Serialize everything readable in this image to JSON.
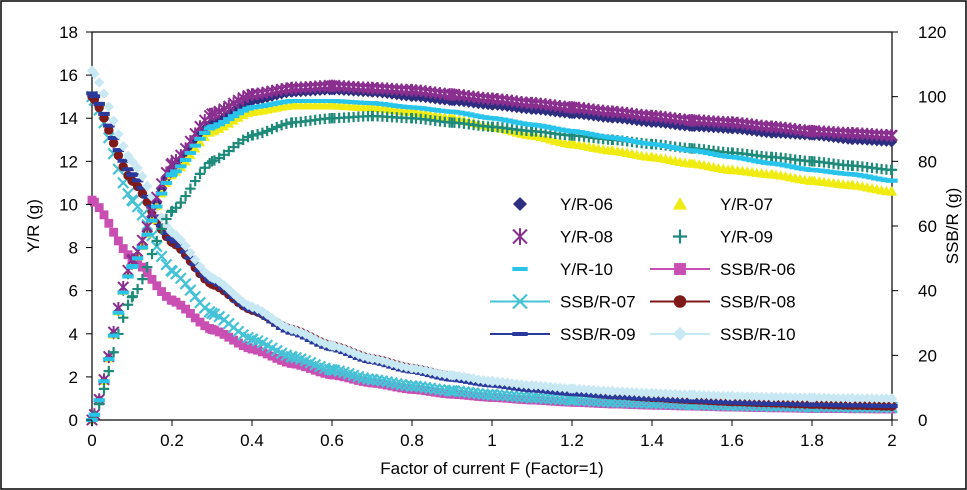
{
  "chart_data": {
    "type": "scatter",
    "xlabel": "Factor of current F (Factor=1)",
    "ylabel_left": "Y/R (g)",
    "ylabel_right": "SSB/R (g)",
    "xlim": [
      0,
      2
    ],
    "ylim_left": [
      0,
      18
    ],
    "ylim_right": [
      0,
      120
    ],
    "x_ticks": [
      "0",
      "0.2",
      "0.4",
      "0.6",
      "0.8",
      "1",
      "1.2",
      "1.4",
      "1.6",
      "1.8",
      "2"
    ],
    "y_left_ticks": [
      "0",
      "2",
      "4",
      "6",
      "8",
      "10",
      "12",
      "14",
      "16",
      "18"
    ],
    "y_right_ticks": [
      "0",
      "20",
      "40",
      "60",
      "80",
      "100",
      "120"
    ],
    "grid": false,
    "legend_position": "center-right",
    "x": [
      0,
      0.1,
      0.2,
      0.3,
      0.4,
      0.5,
      0.6,
      0.7,
      0.8,
      0.9,
      1.0,
      1.1,
      1.2,
      1.3,
      1.4,
      1.5,
      1.6,
      1.7,
      1.8,
      1.9,
      2.0
    ],
    "series": [
      {
        "name": "Y/R-06",
        "axis": "left",
        "marker": "diamond",
        "color": "#2e2e80",
        "values": [
          0,
          7.2,
          11.6,
          13.8,
          14.8,
          15.2,
          15.3,
          15.2,
          15.0,
          14.8,
          14.6,
          14.4,
          14.2,
          14.0,
          13.8,
          13.6,
          13.5,
          13.3,
          13.2,
          13.0,
          12.9
        ]
      },
      {
        "name": "Y/R-07",
        "axis": "left",
        "marker": "triangle",
        "color": "#f0ec12",
        "values": [
          0,
          7.2,
          11.4,
          13.4,
          14.3,
          14.6,
          14.6,
          14.5,
          14.3,
          14.0,
          13.6,
          13.2,
          12.8,
          12.5,
          12.2,
          11.9,
          11.6,
          11.4,
          11.1,
          10.9,
          10.6
        ]
      },
      {
        "name": "Y/R-08",
        "axis": "left",
        "marker": "star",
        "color": "#8a2f8f",
        "values": [
          0,
          7.4,
          11.9,
          14.2,
          15.1,
          15.4,
          15.5,
          15.4,
          15.3,
          15.1,
          14.9,
          14.7,
          14.5,
          14.3,
          14.1,
          13.9,
          13.8,
          13.6,
          13.4,
          13.3,
          13.2
        ]
      },
      {
        "name": "Y/R-09",
        "axis": "left",
        "marker": "plus",
        "color": "#1e8a7a",
        "values": [
          0,
          5.7,
          9.7,
          12.0,
          13.2,
          13.8,
          14.0,
          14.1,
          14.0,
          13.8,
          13.6,
          13.4,
          13.2,
          13.0,
          12.8,
          12.6,
          12.4,
          12.2,
          12.0,
          11.8,
          11.6
        ]
      },
      {
        "name": "Y/R-10",
        "axis": "left",
        "marker": "dash",
        "color": "#29c4ec",
        "values": [
          0,
          7.1,
          11.4,
          13.6,
          14.5,
          14.8,
          14.8,
          14.7,
          14.5,
          14.3,
          14.0,
          13.7,
          13.4,
          13.1,
          12.8,
          12.5,
          12.2,
          11.9,
          11.6,
          11.4,
          11.1
        ]
      },
      {
        "name": "SSB/R-06",
        "axis": "right",
        "marker": "square",
        "color": "#c94fb3",
        "values": [
          68,
          50,
          37,
          28,
          22,
          17.5,
          14,
          11.5,
          9.5,
          8,
          7,
          6.2,
          5.5,
          5,
          4.6,
          4.3,
          4,
          3.8,
          3.6,
          3.5,
          3.4
        ]
      },
      {
        "name": "SSB/R-07",
        "axis": "right",
        "marker": "x",
        "color": "#46c2d6",
        "values": [
          100,
          68,
          46,
          33,
          25,
          19.5,
          15.5,
          12.5,
          10.5,
          9,
          7.8,
          6.9,
          6.2,
          5.6,
          5.2,
          4.8,
          4.5,
          4.3,
          4.1,
          4,
          3.9
        ]
      },
      {
        "name": "SSB/R-08",
        "axis": "right",
        "marker": "circle",
        "color": "#7e1a1a",
        "values": [
          100,
          74,
          55,
          42,
          34,
          28,
          23,
          19,
          16,
          13.5,
          11.5,
          10,
          8.8,
          7.8,
          7,
          6.3,
          5.7,
          5.3,
          4.9,
          4.6,
          4.3
        ]
      },
      {
        "name": "SSB/R-09",
        "axis": "right",
        "marker": "dash",
        "color": "#2a3a9c",
        "values": [
          101,
          76,
          56,
          43,
          34,
          27,
          22,
          18,
          15,
          12.5,
          10.7,
          9.2,
          8.1,
          7.2,
          6.5,
          5.9,
          5.4,
          5,
          4.7,
          4.5,
          4.3
        ]
      },
      {
        "name": "SSB/R-10",
        "axis": "right",
        "marker": "diamond",
        "color": "#c8e8f4",
        "values": [
          108,
          80,
          58,
          44,
          35,
          28,
          23,
          19,
          16,
          13.8,
          12,
          10.7,
          9.7,
          8.9,
          8.3,
          7.8,
          7.4,
          7.1,
          6.9,
          6.7,
          6.6
        ]
      }
    ]
  }
}
